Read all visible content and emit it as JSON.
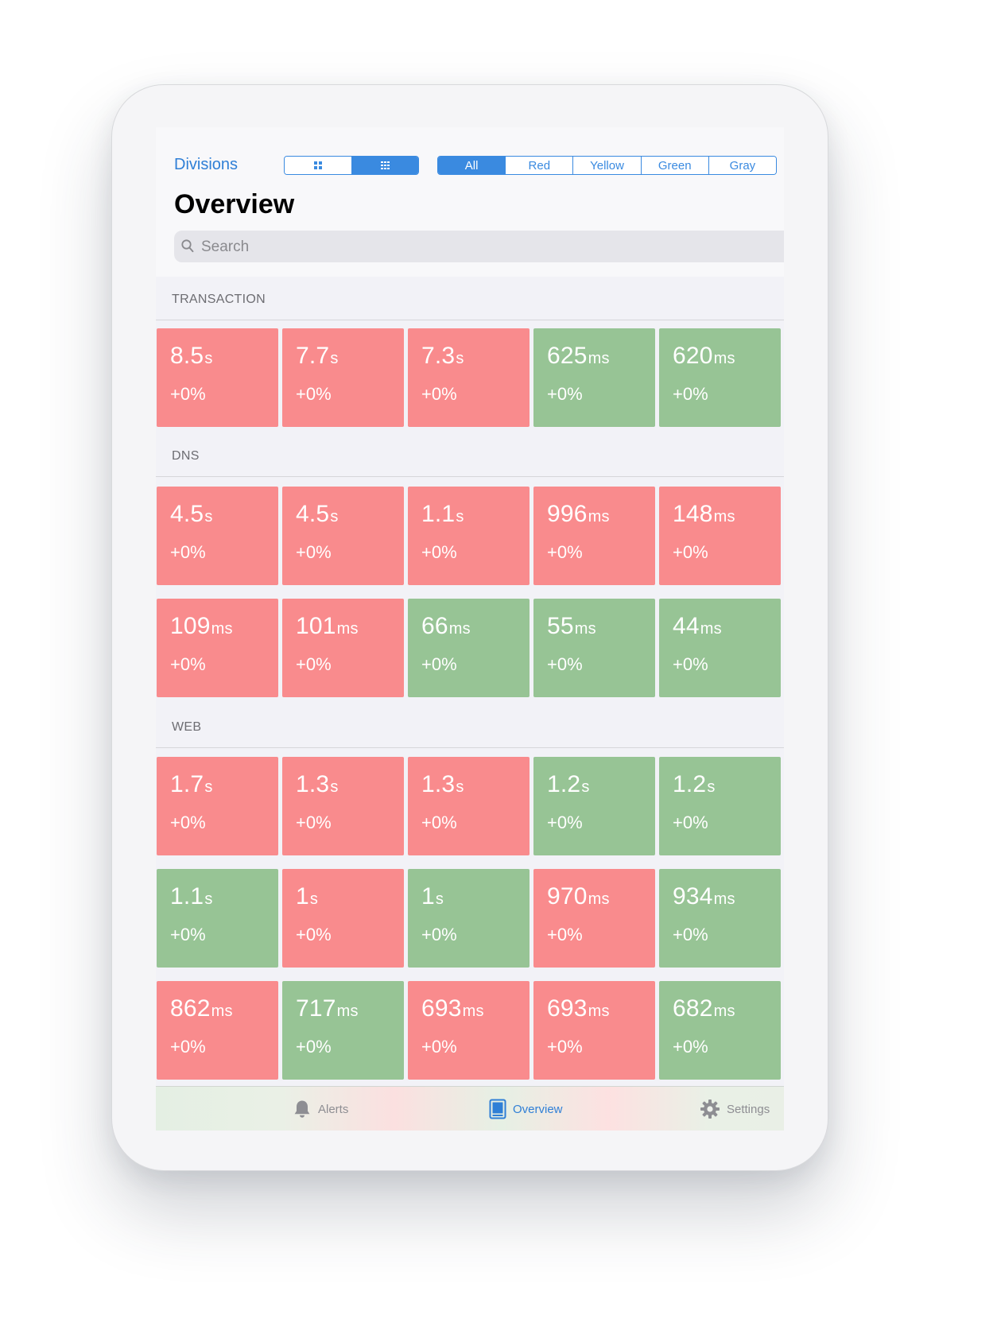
{
  "nav": {
    "back_label": "Divisions",
    "title": "Overview",
    "view_toggle": [
      "large-grid",
      "small-grid"
    ],
    "view_selected": 1,
    "filters": [
      "All",
      "Red",
      "Yellow",
      "Green",
      "Gray"
    ],
    "filter_selected": 0
  },
  "search": {
    "placeholder": "Search",
    "value": ""
  },
  "colors": {
    "red": "#f98b8d",
    "green": "#97c495",
    "accent": "#2f7fd6"
  },
  "sections": [
    {
      "name": "TRANSACTION",
      "tiles": [
        {
          "value": "8.5",
          "unit": "s",
          "change": "+0%",
          "status": "red"
        },
        {
          "value": "7.7",
          "unit": "s",
          "change": "+0%",
          "status": "red"
        },
        {
          "value": "7.3",
          "unit": "s",
          "change": "+0%",
          "status": "red"
        },
        {
          "value": "625",
          "unit": "ms",
          "change": "+0%",
          "status": "green"
        },
        {
          "value": "620",
          "unit": "ms",
          "change": "+0%",
          "status": "green"
        }
      ]
    },
    {
      "name": "DNS",
      "tiles": [
        {
          "value": "4.5",
          "unit": "s",
          "change": "+0%",
          "status": "red"
        },
        {
          "value": "4.5",
          "unit": "s",
          "change": "+0%",
          "status": "red"
        },
        {
          "value": "1.1",
          "unit": "s",
          "change": "+0%",
          "status": "red"
        },
        {
          "value": "996",
          "unit": "ms",
          "change": "+0%",
          "status": "red"
        },
        {
          "value": "148",
          "unit": "ms",
          "change": "+0%",
          "status": "red"
        },
        {
          "value": "109",
          "unit": "ms",
          "change": "+0%",
          "status": "red"
        },
        {
          "value": "101",
          "unit": "ms",
          "change": "+0%",
          "status": "red"
        },
        {
          "value": "66",
          "unit": "ms",
          "change": "+0%",
          "status": "green"
        },
        {
          "value": "55",
          "unit": "ms",
          "change": "+0%",
          "status": "green"
        },
        {
          "value": "44",
          "unit": "ms",
          "change": "+0%",
          "status": "green"
        }
      ]
    },
    {
      "name": "WEB",
      "tiles": [
        {
          "value": "1.7",
          "unit": "s",
          "change": "+0%",
          "status": "red"
        },
        {
          "value": "1.3",
          "unit": "s",
          "change": "+0%",
          "status": "red"
        },
        {
          "value": "1.3",
          "unit": "s",
          "change": "+0%",
          "status": "red"
        },
        {
          "value": "1.2",
          "unit": "s",
          "change": "+0%",
          "status": "green"
        },
        {
          "value": "1.2",
          "unit": "s",
          "change": "+0%",
          "status": "green"
        },
        {
          "value": "1.1",
          "unit": "s",
          "change": "+0%",
          "status": "green"
        },
        {
          "value": "1",
          "unit": "s",
          "change": "+0%",
          "status": "red"
        },
        {
          "value": "1",
          "unit": "s",
          "change": "+0%",
          "status": "green"
        },
        {
          "value": "970",
          "unit": "ms",
          "change": "+0%",
          "status": "red"
        },
        {
          "value": "934",
          "unit": "ms",
          "change": "+0%",
          "status": "green"
        },
        {
          "value": "862",
          "unit": "ms",
          "change": "+0%",
          "status": "red"
        },
        {
          "value": "717",
          "unit": "ms",
          "change": "+0%",
          "status": "green"
        },
        {
          "value": "693",
          "unit": "ms",
          "change": "+0%",
          "status": "red"
        },
        {
          "value": "693",
          "unit": "ms",
          "change": "+0%",
          "status": "red"
        },
        {
          "value": "682",
          "unit": "ms",
          "change": "+0%",
          "status": "green"
        }
      ]
    }
  ],
  "tabbar": {
    "items": [
      {
        "label": "Alerts",
        "icon": "bell-icon"
      },
      {
        "label": "Overview",
        "icon": "overview-icon"
      },
      {
        "label": "Settings",
        "icon": "gear-icon"
      }
    ],
    "selected": 1
  }
}
